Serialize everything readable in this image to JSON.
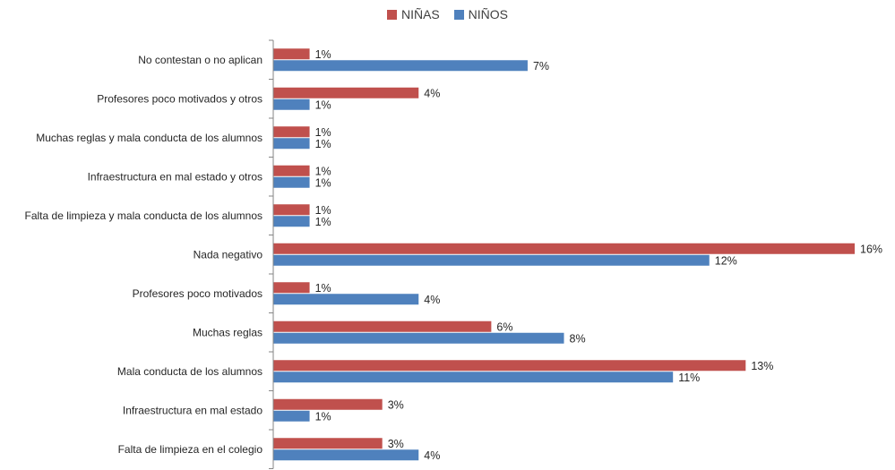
{
  "chart_data": {
    "type": "bar",
    "orientation": "horizontal",
    "title": "",
    "xlabel": "",
    "ylabel": "",
    "xlim": [
      0,
      16
    ],
    "grid": false,
    "legend_position": "top-center",
    "categories": [
      "No contestan o no aplican",
      "Profesores poco motivados y otros",
      "Muchas reglas y mala conducta de los alumnos",
      "Infraestructura en mal estado y otros",
      "Falta de limpieza y mala conducta de los alumnos",
      "Nada negativo",
      "Profesores poco motivados",
      "Muchas reglas",
      "Mala conducta de los alumnos",
      "Infraestructura en mal estado",
      "Falta de limpieza en el colegio"
    ],
    "series": [
      {
        "name": "NIÑAS",
        "color": "#C0504D",
        "values": [
          1,
          4,
          1,
          1,
          1,
          16,
          1,
          6,
          13,
          3,
          3
        ]
      },
      {
        "name": "NIÑOS",
        "color": "#4F81BD",
        "values": [
          7,
          1,
          1,
          1,
          1,
          12,
          4,
          8,
          11,
          1,
          4
        ]
      }
    ],
    "value_suffix": "%"
  }
}
